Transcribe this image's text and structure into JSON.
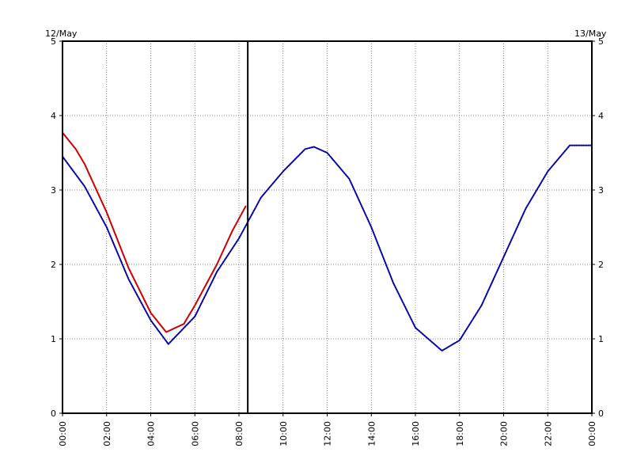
{
  "chart_data": {
    "type": "line",
    "date_labels": {
      "left": "12/May",
      "right": "13/May"
    },
    "x_unit": "hours",
    "xlim": [
      0,
      24
    ],
    "ylim": [
      0,
      5
    ],
    "y_ticks": [
      0,
      1,
      2,
      3,
      4,
      5
    ],
    "x_ticks": [
      {
        "hour": 0,
        "label": "00:00"
      },
      {
        "hour": 2,
        "label": "02:00"
      },
      {
        "hour": 4,
        "label": "04:00"
      },
      {
        "hour": 6,
        "label": "06:00"
      },
      {
        "hour": 8,
        "label": "08:00"
      },
      {
        "hour": 10,
        "label": "10:00"
      },
      {
        "hour": 12,
        "label": "12:00"
      },
      {
        "hour": 14,
        "label": "14:00"
      },
      {
        "hour": 16,
        "label": "16:00"
      },
      {
        "hour": 18,
        "label": "18:00"
      },
      {
        "hour": 20,
        "label": "20:00"
      },
      {
        "hour": 22,
        "label": "22:00"
      },
      {
        "hour": 24,
        "label": "00:00"
      }
    ],
    "grid": true,
    "now_marker_hour": 8.4,
    "series": [
      {
        "color": "#0000aa",
        "style": "dotted",
        "points": [
          [
            0,
            3.45
          ],
          [
            1,
            3.05
          ],
          [
            2,
            2.5
          ],
          [
            3,
            1.8
          ],
          [
            4,
            1.25
          ],
          [
            4.8,
            0.93
          ],
          [
            6,
            1.3
          ],
          [
            7,
            1.9
          ],
          [
            8,
            2.35
          ],
          [
            9,
            2.9
          ],
          [
            10,
            3.25
          ],
          [
            11,
            3.55
          ],
          [
            11.4,
            3.58
          ],
          [
            12,
            3.5
          ],
          [
            13,
            3.15
          ],
          [
            14,
            2.5
          ],
          [
            15,
            1.75
          ],
          [
            16,
            1.15
          ],
          [
            17.2,
            0.84
          ],
          [
            18,
            0.98
          ],
          [
            19,
            1.45
          ],
          [
            20,
            2.1
          ],
          [
            21,
            2.75
          ],
          [
            22,
            3.25
          ],
          [
            23,
            3.6
          ],
          [
            24,
            3.6
          ]
        ]
      },
      {
        "color": "#cc0000",
        "style": "solid",
        "points": [
          [
            0,
            3.77
          ],
          [
            0.6,
            3.55
          ],
          [
            1,
            3.35
          ],
          [
            2,
            2.7
          ],
          [
            3,
            1.95
          ],
          [
            4,
            1.35
          ],
          [
            4.7,
            1.09
          ],
          [
            5.5,
            1.2
          ],
          [
            6,
            1.45
          ],
          [
            7,
            2.0
          ],
          [
            7.7,
            2.45
          ],
          [
            8.3,
            2.78
          ]
        ]
      }
    ]
  }
}
